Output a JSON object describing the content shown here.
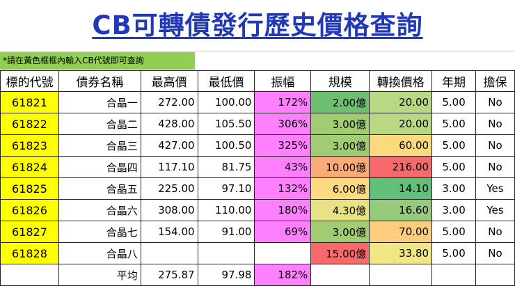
{
  "title": "CB可轉債發行歷史價格查詢",
  "note": "*請在黃色框框內輸入CB代號即可查詢",
  "headers": [
    "標的代號",
    "債券名稱",
    "最高價",
    "最低價",
    "振幅",
    "規模",
    "轉換價格",
    "年期",
    "擔保"
  ],
  "rows": [
    {
      "code": "61821",
      "name": "合晶一",
      "high": "272.00",
      "low": "100.00",
      "amp": "172%",
      "scale": "2.00億",
      "conv": "20.00",
      "term": "5.00",
      "guar": "No",
      "scale_color": "#6fbf72",
      "conv_color": "#b8d884"
    },
    {
      "code": "61822",
      "name": "合晶二",
      "high": "428.00",
      "low": "105.50",
      "amp": "306%",
      "scale": "3.00億",
      "conv": "20.00",
      "term": "5.00",
      "guar": "No",
      "scale_color": "#a2cc74",
      "conv_color": "#b8d884"
    },
    {
      "code": "61823",
      "name": "合晶三",
      "high": "427.00",
      "low": "100.50",
      "amp": "325%",
      "scale": "3.00億",
      "conv": "60.00",
      "term": "5.00",
      "guar": "No",
      "scale_color": "#a2cc74",
      "conv_color": "#fdd97e"
    },
    {
      "code": "61824",
      "name": "合晶四",
      "high": "117.10",
      "low": "81.75",
      "amp": "43%",
      "scale": "10.00億",
      "conv": "216.00",
      "term": "5.00",
      "guar": "No",
      "scale_color": "#fbab75",
      "conv_color": "#f8696b"
    },
    {
      "code": "61825",
      "name": "合晶五",
      "high": "225.00",
      "low": "97.10",
      "amp": "132%",
      "scale": "6.00億",
      "conv": "14.10",
      "term": "3.00",
      "guar": "Yes",
      "scale_color": "#fdda80",
      "conv_color": "#63be7b"
    },
    {
      "code": "61826",
      "name": "合晶六",
      "high": "308.00",
      "low": "110.00",
      "amp": "180%",
      "scale": "4.30億",
      "conv": "16.60",
      "term": "3.00",
      "guar": "Yes",
      "scale_color": "#e7e283",
      "conv_color": "#96cb7d"
    },
    {
      "code": "61827",
      "name": "合晶七",
      "high": "154.00",
      "low": "91.00",
      "amp": "69%",
      "scale": "3.00億",
      "conv": "70.00",
      "term": "5.00",
      "guar": "No",
      "scale_color": "#a2cc74",
      "conv_color": "#fdcd7d"
    },
    {
      "code": "61828",
      "name": "合晶八",
      "high": "",
      "low": "",
      "amp": "",
      "scale": "15.00億",
      "conv": "33.80",
      "term": "5.00",
      "guar": "No",
      "scale_color": "#f8696b",
      "conv_color": "#f0e683"
    }
  ],
  "average": {
    "label": "平均",
    "high": "275.87",
    "low": "97.98",
    "amp": "182%"
  },
  "colors": {
    "title": "#1f39b8",
    "note_bg": "#90d050",
    "code_bg": "#ffff00",
    "amp_bg": "#ff80ff"
  }
}
